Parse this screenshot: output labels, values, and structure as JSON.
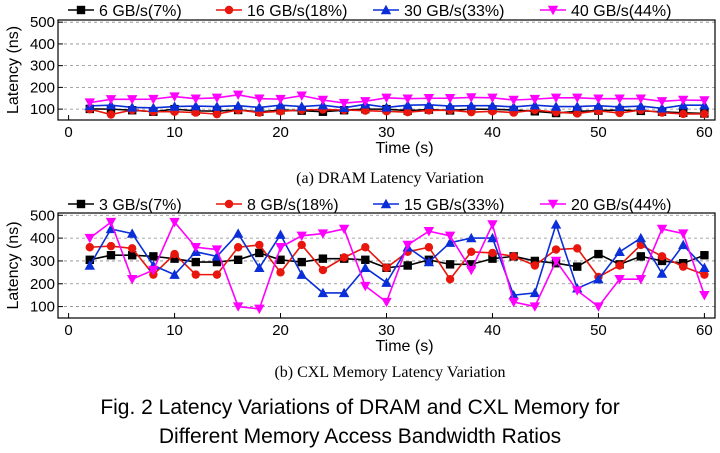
{
  "chart_data": [
    {
      "type": "line",
      "xlabel": "Time (s)",
      "ylabel": "Latency (ns)",
      "xlim": [
        -1,
        61
      ],
      "ylim": [
        50,
        510
      ],
      "xticks": [
        0,
        10,
        20,
        30,
        40,
        50,
        60
      ],
      "yticks": [
        100,
        200,
        300,
        400,
        500
      ],
      "grid": "horizontal-dashed",
      "legend_position": "top",
      "caption": "(a) DRAM Latency Variation",
      "series": [
        {
          "name": "6 GB/s(7%)",
          "color": "#000000",
          "marker": "square",
          "x": [
            2,
            4,
            6,
            8,
            10,
            12,
            14,
            16,
            18,
            20,
            22,
            24,
            26,
            28,
            30,
            32,
            34,
            36,
            38,
            40,
            42,
            44,
            46,
            48,
            50,
            52,
            54,
            56,
            58,
            60
          ],
          "y": [
            101,
            100,
            95,
            88,
            100,
            92,
            91,
            96,
            88,
            95,
            93,
            88,
            95,
            100,
            100,
            93,
            98,
            94,
            100,
            99,
            96,
            90,
            82,
            90,
            93,
            96,
            92,
            88,
            83,
            80
          ]
        },
        {
          "name": "16 GB/s(18%)",
          "color": "#e8160c",
          "marker": "circle",
          "x": [
            2,
            4,
            6,
            8,
            10,
            12,
            14,
            16,
            18,
            20,
            22,
            24,
            26,
            28,
            30,
            32,
            34,
            36,
            38,
            40,
            42,
            44,
            46,
            48,
            50,
            52,
            54,
            56,
            58,
            60
          ],
          "y": [
            100,
            75,
            96,
            88,
            88,
            84,
            77,
            96,
            84,
            90,
            96,
            98,
            96,
            93,
            90,
            86,
            94,
            95,
            86,
            90,
            84,
            96,
            86,
            80,
            92,
            82,
            96,
            84,
            78,
            78
          ]
        },
        {
          "name": "30 GB/s(33%)",
          "color": "#0a2ed8",
          "marker": "triangle-up",
          "x": [
            2,
            4,
            6,
            8,
            10,
            12,
            14,
            16,
            18,
            20,
            22,
            24,
            26,
            28,
            30,
            32,
            34,
            36,
            38,
            40,
            42,
            44,
            46,
            48,
            50,
            52,
            54,
            56,
            58,
            60
          ],
          "y": [
            115,
            118,
            108,
            106,
            112,
            114,
            112,
            116,
            108,
            118,
            112,
            118,
            106,
            122,
            108,
            118,
            120,
            114,
            116,
            116,
            110,
            118,
            112,
            112,
            116,
            110,
            114,
            104,
            118,
            118
          ]
        },
        {
          "name": "40 GB/s(44%)",
          "color": "#ff00ff",
          "marker": "triangle-down",
          "x": [
            2,
            4,
            6,
            8,
            10,
            12,
            14,
            16,
            18,
            20,
            22,
            24,
            26,
            28,
            30,
            32,
            34,
            36,
            38,
            40,
            42,
            44,
            46,
            48,
            50,
            52,
            54,
            56,
            58,
            60
          ],
          "y": [
            130,
            145,
            145,
            146,
            158,
            148,
            152,
            166,
            148,
            146,
            162,
            142,
            128,
            136,
            152,
            148,
            150,
            150,
            154,
            152,
            142,
            146,
            152,
            152,
            148,
            148,
            148,
            136,
            142,
            140
          ]
        }
      ]
    },
    {
      "type": "line",
      "xlabel": "Time (s)",
      "ylabel": "Latency (ns)",
      "xlim": [
        -1,
        61
      ],
      "ylim": [
        50,
        510
      ],
      "xticks": [
        0,
        10,
        20,
        30,
        40,
        50,
        60
      ],
      "yticks": [
        100,
        200,
        300,
        400,
        500
      ],
      "grid": "horizontal-dashed",
      "legend_position": "top",
      "caption": "(b) CXL Memory Latency Variation",
      "series": [
        {
          "name": "3 GB/s(7%)",
          "color": "#000000",
          "marker": "square",
          "x": [
            2,
            4,
            6,
            8,
            10,
            12,
            14,
            16,
            18,
            20,
            22,
            24,
            26,
            28,
            30,
            32,
            34,
            36,
            38,
            40,
            42,
            44,
            46,
            48,
            50,
            52,
            54,
            56,
            58,
            60
          ],
          "y": [
            305,
            325,
            325,
            320,
            310,
            295,
            295,
            305,
            335,
            305,
            295,
            310,
            310,
            305,
            270,
            280,
            305,
            285,
            285,
            310,
            320,
            300,
            290,
            275,
            330,
            285,
            320,
            300,
            290,
            325
          ]
        },
        {
          "name": "8 GB/s(18%)",
          "color": "#e8160c",
          "marker": "circle",
          "x": [
            2,
            4,
            6,
            8,
            10,
            12,
            14,
            16,
            18,
            20,
            22,
            24,
            26,
            28,
            30,
            32,
            34,
            36,
            38,
            40,
            42,
            44,
            46,
            48,
            50,
            52,
            54,
            56,
            58,
            60
          ],
          "y": [
            360,
            365,
            355,
            240,
            330,
            240,
            240,
            360,
            370,
            250,
            370,
            260,
            315,
            360,
            270,
            340,
            360,
            220,
            340,
            335,
            320,
            280,
            350,
            355,
            230,
            280,
            370,
            320,
            275,
            240
          ]
        },
        {
          "name": "15 GB/s(33%)",
          "color": "#0a2ed8",
          "marker": "triangle-up",
          "x": [
            2,
            4,
            6,
            8,
            10,
            12,
            14,
            16,
            18,
            20,
            22,
            24,
            26,
            28,
            30,
            32,
            34,
            36,
            38,
            40,
            42,
            44,
            46,
            48,
            50,
            52,
            54,
            56,
            58,
            60
          ],
          "y": [
            280,
            440,
            420,
            280,
            240,
            340,
            320,
            420,
            270,
            415,
            240,
            160,
            160,
            270,
            205,
            360,
            295,
            380,
            400,
            400,
            150,
            160,
            460,
            180,
            220,
            340,
            400,
            245,
            370,
            270
          ]
        },
        {
          "name": "20 GB/s(44%)",
          "color": "#ff00ff",
          "marker": "triangle-down",
          "x": [
            2,
            4,
            6,
            8,
            10,
            12,
            14,
            16,
            18,
            20,
            22,
            24,
            26,
            28,
            30,
            32,
            34,
            36,
            38,
            40,
            42,
            44,
            46,
            48,
            50,
            52,
            54,
            56,
            58,
            60
          ],
          "y": [
            400,
            470,
            220,
            260,
            470,
            360,
            350,
            100,
            90,
            360,
            410,
            420,
            440,
            190,
            120,
            370,
            430,
            410,
            260,
            460,
            120,
            100,
            300,
            170,
            100,
            220,
            220,
            440,
            420,
            150
          ]
        }
      ]
    }
  ],
  "figure_caption": {
    "line1": "Fig. 2 Latency Variations of DRAM and CXL Memory for",
    "line2": "Different Memory Access Bandwidth Ratios"
  }
}
